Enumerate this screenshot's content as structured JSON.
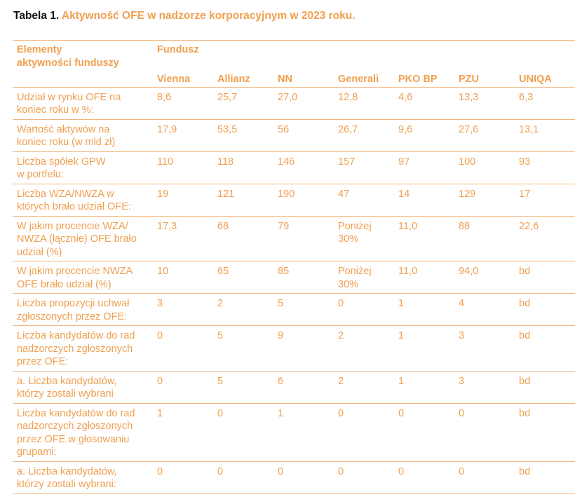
{
  "title": {
    "lead": "Tabela 1.",
    "rest": "Aktywność OFE w nadzorze korporacyjnym w 2023 roku."
  },
  "header": {
    "elements_label": [
      "Elementy",
      "aktywności funduszy"
    ],
    "fund_label": "Fundusz",
    "funds": [
      "Vienna",
      "Allianz",
      "NN",
      "Generali",
      "PKO BP",
      "PZU",
      "UNIQA"
    ]
  },
  "rows": [
    {
      "label": [
        "Udział w rynku OFE na",
        "koniec roku w %:"
      ],
      "values": [
        "8,6",
        "25,7",
        "27,0",
        "12,8",
        "4,6",
        "13,3",
        "6,3"
      ]
    },
    {
      "label": [
        "Wartość aktywów na",
        "koniec roku (w mld zł)"
      ],
      "values": [
        "17,9",
        "53,5",
        "56",
        "26,7",
        "9,6",
        "27,6",
        "13,1"
      ]
    },
    {
      "label": [
        "Liczba spółek GPW",
        "w portfelu:"
      ],
      "values": [
        "110",
        "118",
        "146",
        "157",
        "97",
        "100",
        "93"
      ]
    },
    {
      "label": [
        "Liczba WZA/NWZA w",
        "których brało udział OFE:"
      ],
      "values": [
        "19",
        "121",
        "190",
        "47",
        "14",
        "129",
        "17"
      ]
    },
    {
      "label": [
        "W jakim procencie WZA/",
        "NWZA (łącznie) OFE brało",
        "udział (%)"
      ],
      "values": [
        "17,3",
        "68",
        "79",
        "Poniżej 30%",
        "11,0",
        "88",
        "22,6"
      ]
    },
    {
      "label": [
        "W jakim procencie NWZA",
        "OFE brało udział (%)"
      ],
      "values": [
        "10",
        "65",
        "85",
        "Poniżej 30%",
        "11,0",
        "94,0",
        "bd"
      ]
    },
    {
      "label": [
        "Liczba propozycji uchwał",
        "zgłoszonych przez OFE:"
      ],
      "values": [
        "3",
        "2",
        "5",
        "0",
        "1",
        "4",
        "bd"
      ]
    },
    {
      "label": [
        "Liczba kandydatów do rad",
        "nadzorczych zgłoszonych",
        "przez OFE:"
      ],
      "values": [
        "0",
        "5",
        "9",
        "2",
        "1",
        "3",
        "bd"
      ]
    },
    {
      "label": [
        "a.  Liczba kandydatów,",
        "którzy zostali wybrani"
      ],
      "values": [
        "0",
        "5",
        "6",
        "2",
        "1",
        "3",
        "bd"
      ]
    },
    {
      "label": [
        "Liczba kandydatów do rad",
        "nadzorczych zgłoszonych",
        "przez OFE w głosowaniu",
        "grupami:"
      ],
      "values": [
        "1",
        "0",
        "1",
        "0",
        "0",
        "0",
        "bd"
      ]
    },
    {
      "label": [
        "a.  Liczba kandydatów,",
        "którzy zostali wybrani:"
      ],
      "values": [
        "0",
        "0",
        "0",
        "0",
        "0",
        "0",
        "bd"
      ]
    }
  ]
}
